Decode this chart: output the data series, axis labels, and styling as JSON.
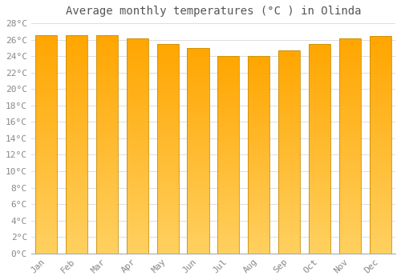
{
  "title": "Average monthly temperatures (°C ) in Olinda",
  "months": [
    "Jan",
    "Feb",
    "Mar",
    "Apr",
    "May",
    "Jun",
    "Jul",
    "Aug",
    "Sep",
    "Oct",
    "Nov",
    "Dec"
  ],
  "values": [
    26.5,
    26.5,
    26.5,
    26.2,
    25.5,
    25.0,
    24.0,
    24.0,
    24.7,
    25.5,
    26.2,
    26.4
  ],
  "bar_color_top": "#FFA500",
  "bar_color_bottom": "#FFD060",
  "bar_edge_color": "#C8900A",
  "ylim": [
    0,
    28
  ],
  "ytick_step": 2,
  "background_color": "#ffffff",
  "grid_color": "#dddddd",
  "title_fontsize": 10,
  "tick_fontsize": 8,
  "font_family": "monospace",
  "title_color": "#555555",
  "tick_color": "#888888"
}
